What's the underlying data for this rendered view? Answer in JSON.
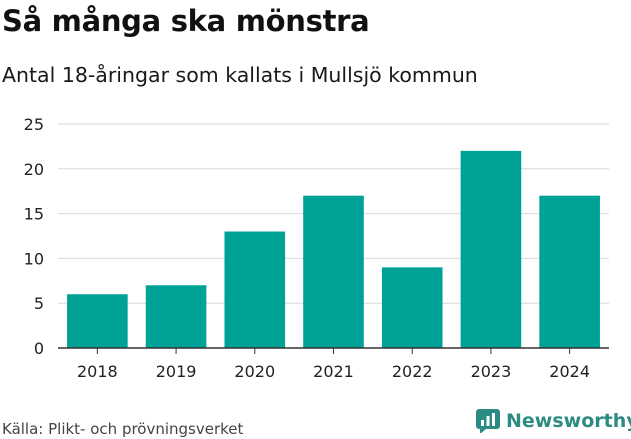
{
  "header": {
    "title": "Så många ska mönstra",
    "subtitle": "Antal 18-åringar som kallats i Mullsjö kommun"
  },
  "footer": {
    "source": "Källa: Plikt- och prövningsverket",
    "brand": "Newsworthy"
  },
  "colors": {
    "bar": "#00a298",
    "grid": "#d9d9d9",
    "axis": "#333333",
    "brand": "#2c8c83"
  },
  "chart_data": {
    "type": "bar",
    "categories": [
      "2018",
      "2019",
      "2020",
      "2021",
      "2022",
      "2023",
      "2024"
    ],
    "values": [
      6,
      7,
      13,
      17,
      9,
      22,
      17
    ],
    "ylim": [
      0,
      25
    ],
    "yticks": [
      "0",
      "5",
      "10",
      "15",
      "20",
      "25"
    ],
    "grid": true,
    "legend": "none"
  }
}
